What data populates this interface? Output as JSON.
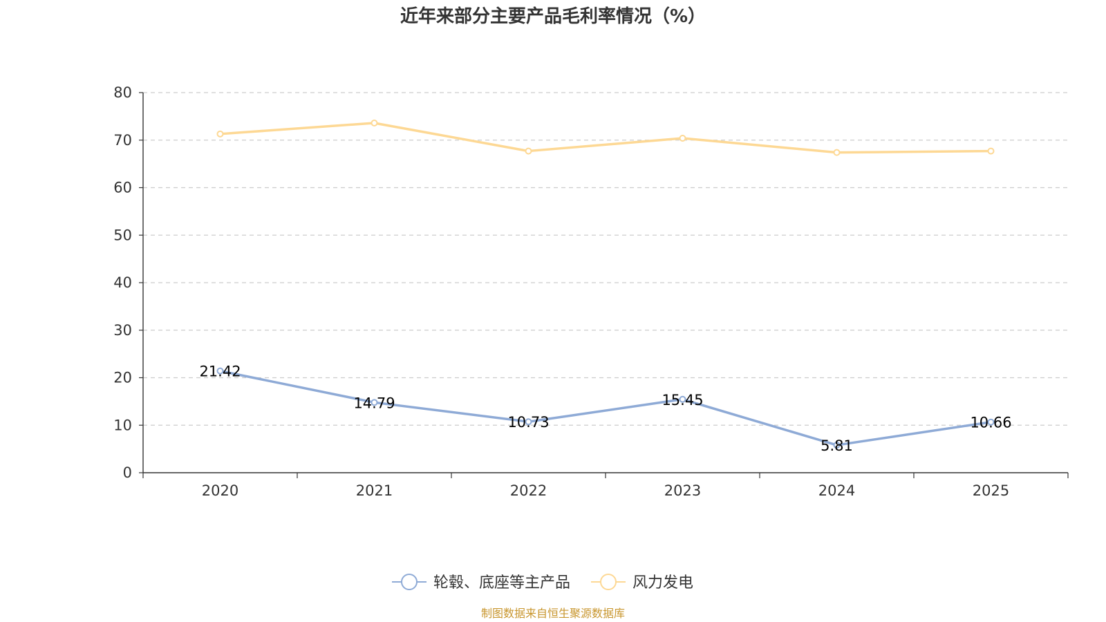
{
  "chart_data": {
    "type": "line",
    "title": "近年来部分主要产品毛利率情况（%）",
    "categories": [
      "2020",
      "2021",
      "2022",
      "2023",
      "2024",
      "2025"
    ],
    "ylim": [
      0,
      80
    ],
    "yticks": [
      0,
      10,
      20,
      30,
      40,
      50,
      60,
      70,
      80
    ],
    "grid": true,
    "legend_position": "bottom-center",
    "series": [
      {
        "name": "轮毂、底座等主产品",
        "color": "#8eaad6",
        "values": [
          21.42,
          14.79,
          10.73,
          15.45,
          5.81,
          10.66
        ],
        "labels": [
          "21.42",
          "14.79",
          "10.73",
          "15.45",
          "5.81",
          "10.66"
        ],
        "show_labels": true
      },
      {
        "name": "风力发电",
        "color": "#fdd894",
        "values": [
          71.3,
          73.6,
          67.7,
          70.4,
          67.4,
          67.7
        ],
        "show_labels": false
      }
    ]
  },
  "source_text": "制图数据来自恒生聚源数据库",
  "colors": {
    "axis": "#333333",
    "grid": "#cccccc",
    "source": "#c8962e"
  }
}
